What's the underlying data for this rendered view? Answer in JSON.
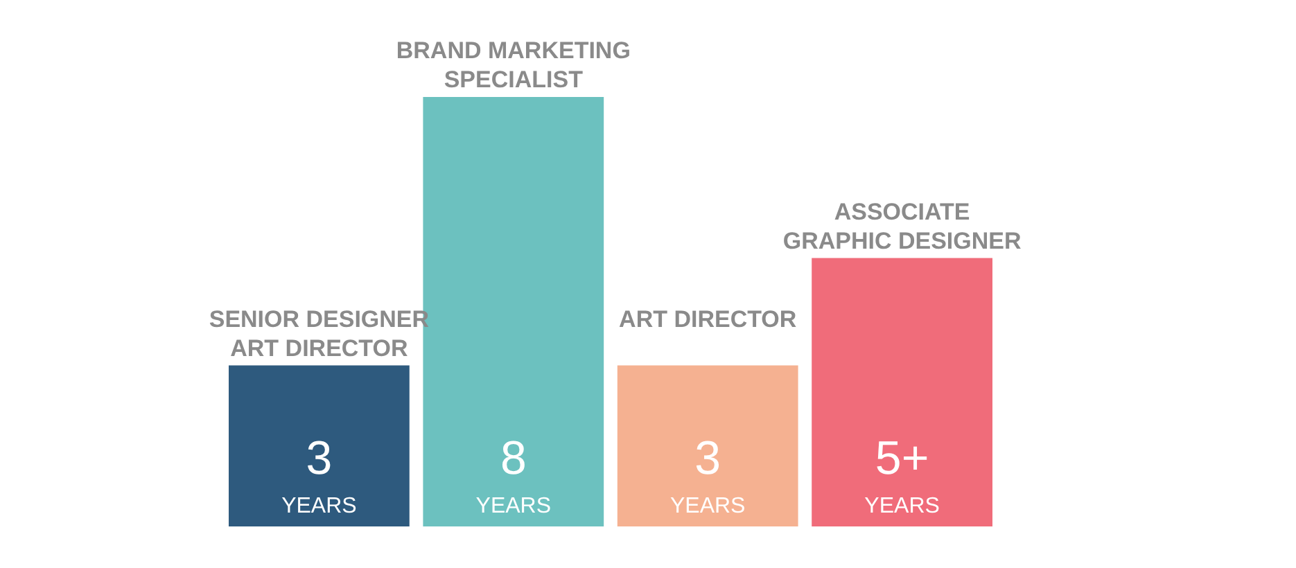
{
  "chart_data": {
    "type": "bar",
    "categories": [
      "SENIOR DESIGNER\nART DIRECTOR",
      "BRAND MARKETING\nSPECIALIST",
      "ART DIRECTOR",
      "ASSOCIATE\nGRAPHIC DESIGNER"
    ],
    "values": [
      3,
      8,
      3,
      5
    ],
    "value_labels": [
      "3",
      "8",
      "3",
      "5+"
    ],
    "annotations": [
      "YEARS",
      "YEARS",
      "YEARS",
      "YEARS"
    ],
    "colors": [
      "#2e5a7e",
      "#6cc1bf",
      "#f5b191",
      "#f06c7a"
    ]
  }
}
